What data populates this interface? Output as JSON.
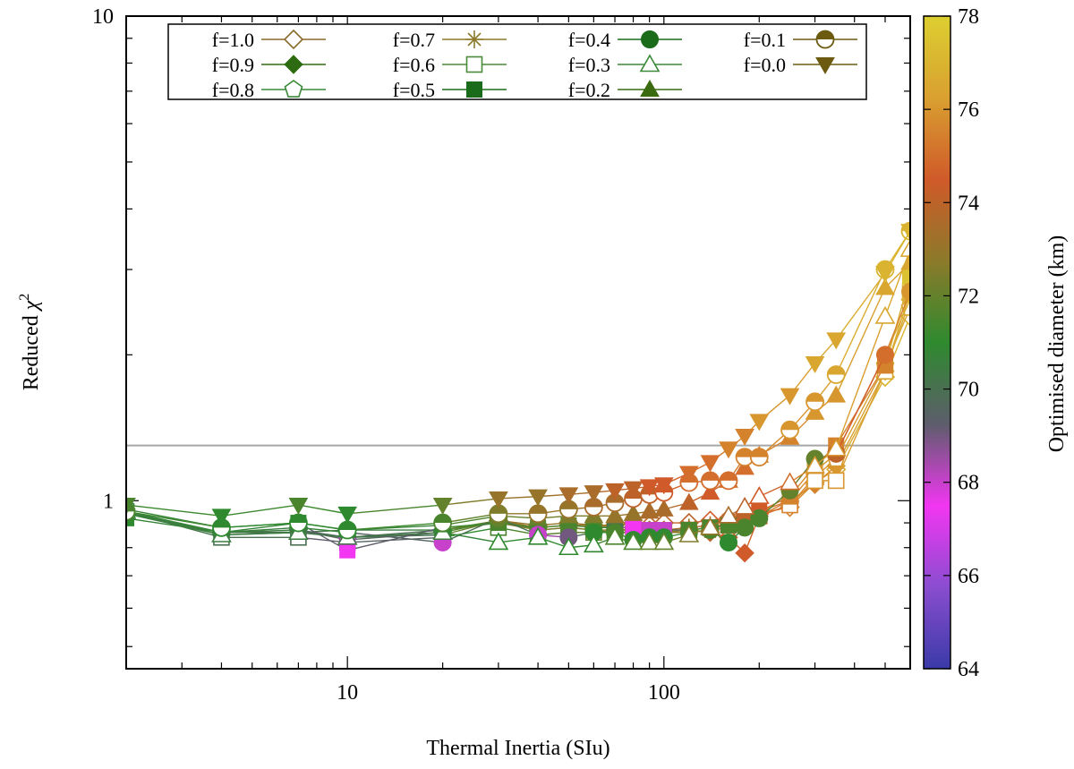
{
  "chart_data": {
    "type": "scatter",
    "title": "",
    "xlabel": "Thermal Inertia (SIu)",
    "ylabel_main": "Reduced ",
    "ylabel_symbol": "χ",
    "ylabel_exp": "2",
    "xscale": "log",
    "yscale": "log",
    "xlim": [
      2,
      600
    ],
    "ylim": [
      0.45,
      10
    ],
    "x_ticks": [
      {
        "value": 10,
        "label": "10"
      },
      {
        "value": 100,
        "label": "100"
      }
    ],
    "y_ticks": [
      {
        "value": 1,
        "label": "1"
      },
      {
        "value": 10,
        "label": "10"
      }
    ],
    "reference_line": {
      "y": 1.3,
      "color": "#a6a6a6"
    },
    "colorbar": {
      "label": "Optimised diameter (km)",
      "range": [
        64,
        78
      ],
      "ticks": [
        "64",
        "66",
        "68",
        "70",
        "72",
        "74",
        "76",
        "78"
      ],
      "colors": [
        "#3a3aa8",
        "#8a4dd0",
        "#f236f2",
        "#5d5d6b",
        "#2f8a2f",
        "#8c7a2a",
        "#d05a2a",
        "#d9a030",
        "#dccf30"
      ]
    },
    "x": [
      2,
      4,
      7,
      10,
      20,
      30,
      40,
      50,
      60,
      70,
      80,
      90,
      100,
      120,
      140,
      160,
      180,
      200,
      250,
      300,
      350,
      500,
      600
    ],
    "legend": {
      "position": "top-left, 4 columns",
      "labels": [
        "f=1.0",
        "f=0.9",
        "f=0.8",
        "f=0.7",
        "f=0.6",
        "f=0.5",
        "f=0.4",
        "f=0.3",
        "f=0.2",
        "f=0.1",
        "f=0.0"
      ]
    },
    "series": [
      {
        "name": "f=1.0",
        "marker": "diamond-open",
        "color": "#8b6a2e",
        "values": [
          0.94,
          0.86,
          0.86,
          0.87,
          0.87,
          0.91,
          0.89,
          0.9,
          0.89,
          0.89,
          0.9,
          0.89,
          0.9,
          0.9,
          0.91,
          0.92,
          0.93,
          0.94,
          0.97,
          1.09,
          1.16,
          1.8,
          2.4
        ],
        "diameters": [
          70.5,
          70,
          70,
          70,
          71,
          73,
          73,
          73,
          73,
          73,
          73.5,
          74,
          74,
          74,
          74.5,
          75,
          75,
          75,
          75.5,
          76,
          76.5,
          77,
          77
        ]
      },
      {
        "name": "f=0.9",
        "marker": "diamond",
        "color": "#2e6b10",
        "values": [
          0.94,
          0.85,
          0.86,
          0.84,
          0.85,
          0.91,
          0.88,
          0.89,
          0.89,
          0.88,
          0.88,
          0.87,
          0.87,
          0.87,
          0.86,
          0.84,
          0.78,
          0.93,
          1.0,
          1.08,
          1.18,
          1.85,
          2.6
        ],
        "diameters": [
          71,
          70,
          70,
          69,
          71,
          73,
          73,
          73,
          73,
          73,
          73,
          73.5,
          73.5,
          74,
          74,
          74.5,
          74.5,
          75,
          75.5,
          75.5,
          76,
          76.5,
          76.5
        ]
      },
      {
        "name": "f=0.8",
        "marker": "pentagon-open",
        "color": "#3a8a3a",
        "values": [
          0.95,
          0.86,
          0.87,
          0.83,
          0.86,
          0.91,
          0.87,
          0.88,
          0.87,
          0.86,
          0.86,
          0.86,
          0.86,
          0.86,
          0.87,
          0.88,
          0.89,
          0.93,
          0.98,
          1.12,
          1.22,
          1.9,
          2.5
        ],
        "diameters": [
          71,
          70.5,
          70.5,
          68.5,
          71,
          72,
          71.5,
          72,
          72,
          71.5,
          72,
          72.5,
          72.5,
          73,
          73.5,
          74,
          74,
          75,
          75.5,
          76,
          76,
          76.5,
          76.5
        ]
      },
      {
        "name": "f=0.7",
        "marker": "star",
        "color": "#8c7a2a",
        "values": [
          0.95,
          0.86,
          0.87,
          0.84,
          0.87,
          0.9,
          0.87,
          0.88,
          0.87,
          0.87,
          0.87,
          0.87,
          0.87,
          0.88,
          0.89,
          0.91,
          0.93,
          0.95,
          1.0,
          1.15,
          1.25,
          2.0,
          2.6
        ],
        "diameters": [
          71,
          70.5,
          70.5,
          69,
          71,
          72.5,
          72.5,
          72.5,
          72.5,
          72.5,
          73,
          73,
          73.5,
          73.5,
          74,
          74,
          74.5,
          75,
          75.5,
          76,
          76,
          76.5,
          77
        ]
      },
      {
        "name": "f=0.6",
        "marker": "square-open",
        "color": "#4a8a3a",
        "values": [
          0.95,
          0.84,
          0.84,
          0.82,
          0.84,
          0.88,
          0.85,
          0.86,
          0.86,
          0.86,
          0.86,
          0.86,
          0.86,
          0.87,
          0.88,
          0.89,
          0.91,
          0.93,
          0.98,
          1.1,
          1.1,
          1.85,
          2.7
        ],
        "diameters": [
          70.5,
          70,
          70,
          68.5,
          70.5,
          71.5,
          71.5,
          72,
          72,
          71.5,
          72,
          72.5,
          72.5,
          73,
          73.5,
          74,
          74,
          74.5,
          75.5,
          76,
          76,
          76.5,
          77
        ]
      },
      {
        "name": "f=0.5",
        "marker": "square",
        "color": "#1a6b1a",
        "values": [
          0.92,
          0.86,
          0.9,
          0.79,
          0.88,
          0.9,
          0.88,
          0.89,
          0.88,
          0.88,
          0.88,
          0.87,
          0.87,
          0.87,
          0.88,
          0.89,
          0.92,
          0.95,
          1.02,
          1.18,
          1.3,
          1.9,
          2.9
        ],
        "diameters": [
          71,
          70.5,
          71,
          67.5,
          71,
          71.5,
          71.5,
          71.5,
          71.5,
          70,
          67.5,
          68,
          68,
          71.5,
          71.5,
          71.5,
          74,
          74.5,
          75.5,
          76,
          75.5,
          75.5,
          77.5
        ]
      },
      {
        "name": "f=0.4",
        "marker": "circle",
        "color": "#1a6b1a",
        "values": [
          0.94,
          0.86,
          0.88,
          0.86,
          0.82,
          0.92,
          0.85,
          0.84,
          0.86,
          0.86,
          0.83,
          0.84,
          0.84,
          0.86,
          0.87,
          0.82,
          0.88,
          0.92,
          1.05,
          1.22,
          1.25,
          2.0,
          2.7
        ],
        "diameters": [
          71,
          70.5,
          70.5,
          71,
          68,
          72,
          68,
          69,
          71,
          71.5,
          71,
          71,
          71,
          71.5,
          71.5,
          71,
          71.5,
          71.5,
          72,
          72,
          74,
          75,
          76
        ]
      },
      {
        "name": "f=0.3",
        "marker": "triangle-open",
        "color": "#3a8a3a",
        "values": [
          0.95,
          0.85,
          0.86,
          0.84,
          0.86,
          0.82,
          0.84,
          0.8,
          0.81,
          0.84,
          0.82,
          0.82,
          0.82,
          0.85,
          0.88,
          0.93,
          0.97,
          1.02,
          1.09,
          1.18,
          1.28,
          2.4,
          3.3
        ],
        "diameters": [
          70.5,
          70.5,
          70.5,
          70,
          70.5,
          71,
          71,
          71,
          71,
          71.5,
          71.5,
          72,
          72,
          72.5,
          73,
          73.5,
          74,
          74.5,
          75,
          76,
          76,
          76.5,
          76.5
        ]
      },
      {
        "name": "f=0.2",
        "marker": "triangle",
        "color": "#3a6b10",
        "values": [
          0.96,
          0.88,
          0.9,
          0.87,
          0.89,
          0.93,
          0.92,
          0.93,
          0.93,
          0.93,
          0.94,
          0.95,
          0.96,
          0.99,
          1.04,
          1.1,
          1.17,
          1.24,
          1.35,
          1.52,
          1.65,
          2.75,
          3.1
        ],
        "diameters": [
          71,
          70.5,
          70.5,
          70.5,
          71,
          72,
          72,
          72.5,
          72.5,
          73,
          73,
          73.5,
          73.5,
          74,
          74.5,
          75,
          75,
          75.5,
          75.5,
          76,
          76,
          76.5,
          76.5
        ]
      },
      {
        "name": "f=0.1",
        "marker": "circle-half",
        "color": "#6b5a10",
        "values": [
          0.95,
          0.88,
          0.9,
          0.87,
          0.9,
          0.94,
          0.94,
          0.96,
          0.97,
          0.99,
          1.01,
          1.03,
          1.04,
          1.09,
          1.1,
          1.1,
          1.23,
          1.23,
          1.4,
          1.6,
          1.82,
          3.0,
          3.6
        ],
        "diameters": [
          71.5,
          71,
          71,
          71,
          71.5,
          72.5,
          73,
          73,
          73.5,
          73.5,
          74,
          74,
          74.5,
          75,
          75,
          75,
          75.5,
          75.5,
          76,
          76,
          76.5,
          77,
          77
        ]
      },
      {
        "name": "f=0.0",
        "marker": "triangle-down",
        "color": "#6b5a10",
        "values": [
          0.98,
          0.93,
          0.98,
          0.94,
          0.98,
          1.01,
          1.02,
          1.03,
          1.04,
          1.05,
          1.06,
          1.07,
          1.08,
          1.14,
          1.2,
          1.28,
          1.36,
          1.46,
          1.65,
          1.92,
          2.15,
          2.95,
          3.6
        ],
        "diameters": [
          71.5,
          71,
          71.5,
          71,
          72,
          73,
          73,
          73.5,
          73.5,
          74,
          74,
          74.5,
          74.5,
          75,
          75,
          75.5,
          75.5,
          76,
          76,
          76.5,
          76.5,
          77,
          77
        ]
      }
    ]
  }
}
